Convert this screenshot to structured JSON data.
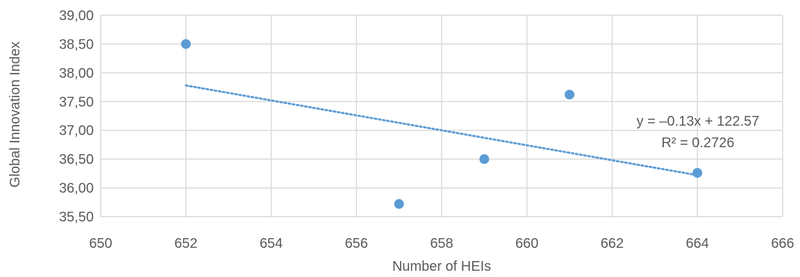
{
  "chart_data": {
    "type": "scatter",
    "xlabel": "Number of HEIs",
    "ylabel": "Global Innovation Index",
    "xlim": [
      650,
      666
    ],
    "ylim": [
      35.5,
      39.0
    ],
    "x_ticks": [
      650,
      652,
      654,
      656,
      658,
      660,
      662,
      664,
      666
    ],
    "x_tick_labels": [
      "650",
      "652",
      "654",
      "656",
      "658",
      "660",
      "662",
      "664",
      "666"
    ],
    "y_ticks": [
      35.5,
      36.0,
      36.5,
      37.0,
      37.5,
      38.0,
      38.5,
      39.0
    ],
    "y_tick_labels": [
      "35,50",
      "36,00",
      "36,50",
      "37,00",
      "37,50",
      "38,00",
      "38,50",
      "39,00"
    ],
    "grid": true,
    "legend": "none",
    "series": [
      {
        "x": [
          652,
          657,
          659,
          661,
          664
        ],
        "y": [
          38.5,
          35.72,
          36.5,
          37.62,
          36.26
        ],
        "color": "#5b9bd5"
      }
    ],
    "trendline": {
      "type": "linear",
      "x": [
        652,
        664
      ],
      "y": [
        37.78,
        36.22
      ],
      "style": "dotted",
      "color": "#5b9bd5",
      "equation": "y = –0.13x + 122.57",
      "r_squared": "R² = 0.2726"
    }
  }
}
